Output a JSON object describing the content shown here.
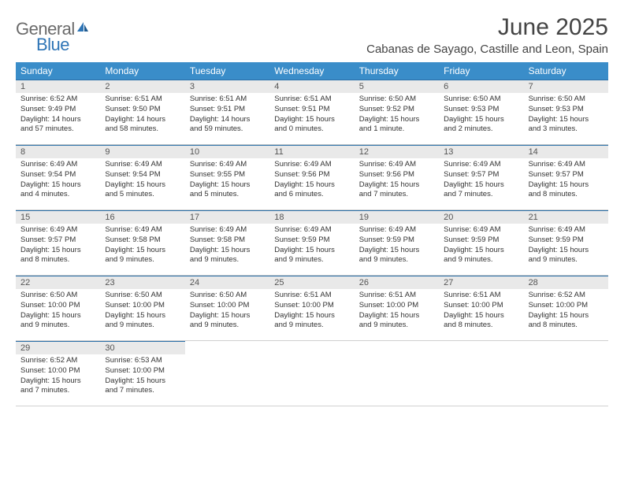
{
  "logo": {
    "text1": "General",
    "text2": "Blue",
    "color_general": "#6b6b6b",
    "color_blue": "#2e75b6"
  },
  "header": {
    "month_title": "June 2025",
    "location": "Cabanas de Sayago, Castille and Leon, Spain"
  },
  "colors": {
    "header_bg": "#3a8dc9",
    "daynum_bg": "#e9e9e9",
    "daynum_border": "#2a6fa8",
    "text": "#333333"
  },
  "day_labels": [
    "Sunday",
    "Monday",
    "Tuesday",
    "Wednesday",
    "Thursday",
    "Friday",
    "Saturday"
  ],
  "weeks": [
    [
      {
        "n": "1",
        "sunrise": "Sunrise: 6:52 AM",
        "sunset": "Sunset: 9:49 PM",
        "day1": "Daylight: 14 hours",
        "day2": "and 57 minutes."
      },
      {
        "n": "2",
        "sunrise": "Sunrise: 6:51 AM",
        "sunset": "Sunset: 9:50 PM",
        "day1": "Daylight: 14 hours",
        "day2": "and 58 minutes."
      },
      {
        "n": "3",
        "sunrise": "Sunrise: 6:51 AM",
        "sunset": "Sunset: 9:51 PM",
        "day1": "Daylight: 14 hours",
        "day2": "and 59 minutes."
      },
      {
        "n": "4",
        "sunrise": "Sunrise: 6:51 AM",
        "sunset": "Sunset: 9:51 PM",
        "day1": "Daylight: 15 hours",
        "day2": "and 0 minutes."
      },
      {
        "n": "5",
        "sunrise": "Sunrise: 6:50 AM",
        "sunset": "Sunset: 9:52 PM",
        "day1": "Daylight: 15 hours",
        "day2": "and 1 minute."
      },
      {
        "n": "6",
        "sunrise": "Sunrise: 6:50 AM",
        "sunset": "Sunset: 9:53 PM",
        "day1": "Daylight: 15 hours",
        "day2": "and 2 minutes."
      },
      {
        "n": "7",
        "sunrise": "Sunrise: 6:50 AM",
        "sunset": "Sunset: 9:53 PM",
        "day1": "Daylight: 15 hours",
        "day2": "and 3 minutes."
      }
    ],
    [
      {
        "n": "8",
        "sunrise": "Sunrise: 6:49 AM",
        "sunset": "Sunset: 9:54 PM",
        "day1": "Daylight: 15 hours",
        "day2": "and 4 minutes."
      },
      {
        "n": "9",
        "sunrise": "Sunrise: 6:49 AM",
        "sunset": "Sunset: 9:54 PM",
        "day1": "Daylight: 15 hours",
        "day2": "and 5 minutes."
      },
      {
        "n": "10",
        "sunrise": "Sunrise: 6:49 AM",
        "sunset": "Sunset: 9:55 PM",
        "day1": "Daylight: 15 hours",
        "day2": "and 5 minutes."
      },
      {
        "n": "11",
        "sunrise": "Sunrise: 6:49 AM",
        "sunset": "Sunset: 9:56 PM",
        "day1": "Daylight: 15 hours",
        "day2": "and 6 minutes."
      },
      {
        "n": "12",
        "sunrise": "Sunrise: 6:49 AM",
        "sunset": "Sunset: 9:56 PM",
        "day1": "Daylight: 15 hours",
        "day2": "and 7 minutes."
      },
      {
        "n": "13",
        "sunrise": "Sunrise: 6:49 AM",
        "sunset": "Sunset: 9:57 PM",
        "day1": "Daylight: 15 hours",
        "day2": "and 7 minutes."
      },
      {
        "n": "14",
        "sunrise": "Sunrise: 6:49 AM",
        "sunset": "Sunset: 9:57 PM",
        "day1": "Daylight: 15 hours",
        "day2": "and 8 minutes."
      }
    ],
    [
      {
        "n": "15",
        "sunrise": "Sunrise: 6:49 AM",
        "sunset": "Sunset: 9:57 PM",
        "day1": "Daylight: 15 hours",
        "day2": "and 8 minutes."
      },
      {
        "n": "16",
        "sunrise": "Sunrise: 6:49 AM",
        "sunset": "Sunset: 9:58 PM",
        "day1": "Daylight: 15 hours",
        "day2": "and 9 minutes."
      },
      {
        "n": "17",
        "sunrise": "Sunrise: 6:49 AM",
        "sunset": "Sunset: 9:58 PM",
        "day1": "Daylight: 15 hours",
        "day2": "and 9 minutes."
      },
      {
        "n": "18",
        "sunrise": "Sunrise: 6:49 AM",
        "sunset": "Sunset: 9:59 PM",
        "day1": "Daylight: 15 hours",
        "day2": "and 9 minutes."
      },
      {
        "n": "19",
        "sunrise": "Sunrise: 6:49 AM",
        "sunset": "Sunset: 9:59 PM",
        "day1": "Daylight: 15 hours",
        "day2": "and 9 minutes."
      },
      {
        "n": "20",
        "sunrise": "Sunrise: 6:49 AM",
        "sunset": "Sunset: 9:59 PM",
        "day1": "Daylight: 15 hours",
        "day2": "and 9 minutes."
      },
      {
        "n": "21",
        "sunrise": "Sunrise: 6:49 AM",
        "sunset": "Sunset: 9:59 PM",
        "day1": "Daylight: 15 hours",
        "day2": "and 9 minutes."
      }
    ],
    [
      {
        "n": "22",
        "sunrise": "Sunrise: 6:50 AM",
        "sunset": "Sunset: 10:00 PM",
        "day1": "Daylight: 15 hours",
        "day2": "and 9 minutes."
      },
      {
        "n": "23",
        "sunrise": "Sunrise: 6:50 AM",
        "sunset": "Sunset: 10:00 PM",
        "day1": "Daylight: 15 hours",
        "day2": "and 9 minutes."
      },
      {
        "n": "24",
        "sunrise": "Sunrise: 6:50 AM",
        "sunset": "Sunset: 10:00 PM",
        "day1": "Daylight: 15 hours",
        "day2": "and 9 minutes."
      },
      {
        "n": "25",
        "sunrise": "Sunrise: 6:51 AM",
        "sunset": "Sunset: 10:00 PM",
        "day1": "Daylight: 15 hours",
        "day2": "and 9 minutes."
      },
      {
        "n": "26",
        "sunrise": "Sunrise: 6:51 AM",
        "sunset": "Sunset: 10:00 PM",
        "day1": "Daylight: 15 hours",
        "day2": "and 9 minutes."
      },
      {
        "n": "27",
        "sunrise": "Sunrise: 6:51 AM",
        "sunset": "Sunset: 10:00 PM",
        "day1": "Daylight: 15 hours",
        "day2": "and 8 minutes."
      },
      {
        "n": "28",
        "sunrise": "Sunrise: 6:52 AM",
        "sunset": "Sunset: 10:00 PM",
        "day1": "Daylight: 15 hours",
        "day2": "and 8 minutes."
      }
    ],
    [
      {
        "n": "29",
        "sunrise": "Sunrise: 6:52 AM",
        "sunset": "Sunset: 10:00 PM",
        "day1": "Daylight: 15 hours",
        "day2": "and 7 minutes."
      },
      {
        "n": "30",
        "sunrise": "Sunrise: 6:53 AM",
        "sunset": "Sunset: 10:00 PM",
        "day1": "Daylight: 15 hours",
        "day2": "and 7 minutes."
      },
      null,
      null,
      null,
      null,
      null
    ]
  ]
}
